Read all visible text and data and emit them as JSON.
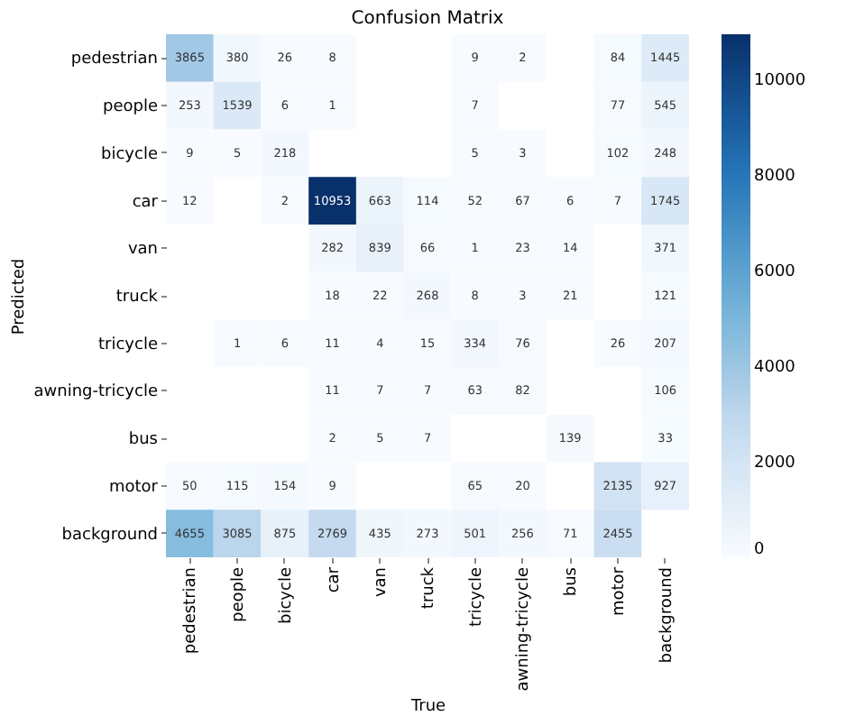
{
  "chart_data": {
    "type": "heatmap",
    "title": "Confusion Matrix",
    "xlabel": "True",
    "ylabel": "Predicted",
    "categories": [
      "pedestrian",
      "people",
      "bicycle",
      "car",
      "van",
      "truck",
      "tricycle",
      "awning-tricycle",
      "bus",
      "motor",
      "background"
    ],
    "y_categories": [
      "pedestrian",
      "people",
      "bicycle",
      "car",
      "van",
      "truck",
      "tricycle",
      "awning-tricycle",
      "bus",
      "motor",
      "background"
    ],
    "cells": [
      [
        3865,
        380,
        26,
        8,
        null,
        null,
        9,
        2,
        null,
        84,
        1445
      ],
      [
        253,
        1539,
        6,
        1,
        null,
        null,
        7,
        null,
        null,
        77,
        545
      ],
      [
        9,
        5,
        218,
        null,
        null,
        null,
        5,
        3,
        null,
        102,
        248
      ],
      [
        12,
        null,
        2,
        10953,
        663,
        114,
        52,
        67,
        6,
        7,
        1745
      ],
      [
        null,
        null,
        null,
        282,
        839,
        66,
        1,
        23,
        14,
        null,
        371
      ],
      [
        null,
        null,
        null,
        18,
        22,
        268,
        8,
        3,
        21,
        null,
        121
      ],
      [
        null,
        1,
        6,
        11,
        4,
        15,
        334,
        76,
        null,
        26,
        207
      ],
      [
        null,
        null,
        null,
        11,
        7,
        7,
        63,
        82,
        null,
        null,
        106
      ],
      [
        null,
        null,
        null,
        2,
        5,
        7,
        null,
        null,
        139,
        null,
        33
      ],
      [
        50,
        115,
        154,
        9,
        null,
        null,
        65,
        20,
        null,
        2135,
        927
      ],
      [
        4655,
        3085,
        875,
        2769,
        435,
        273,
        501,
        256,
        71,
        2455,
        null
      ]
    ],
    "clim": [
      0,
      10953
    ],
    "cticks": [
      0,
      2000,
      4000,
      6000,
      8000,
      10000
    ],
    "data_labels": true
  }
}
